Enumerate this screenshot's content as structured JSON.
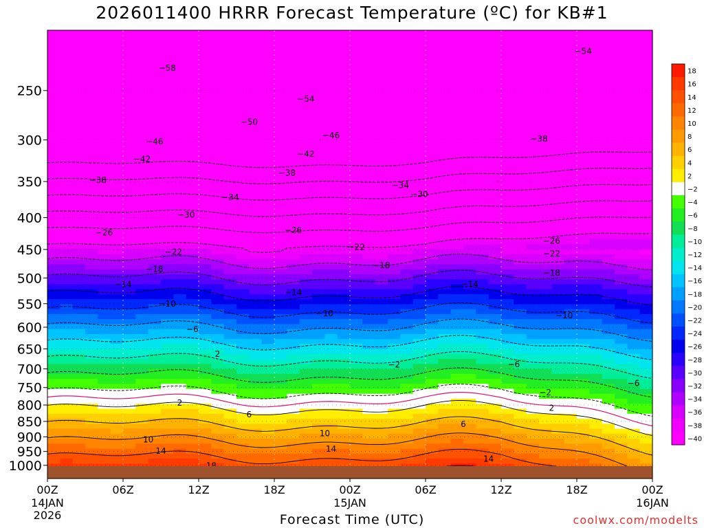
{
  "title": "2026011400 HRRR Forecast Temperature (ºC) for KB#1",
  "xlabel": "Forecast Time (UTC)",
  "credit": "coolwx.com/modelts",
  "chart_data": {
    "type": "contour",
    "title": "2026011400 HRRR Forecast Temperature (ºC) for KB#1",
    "xlabel": "Forecast Time (UTC)",
    "ylabel": "",
    "y_axis": "pressure (hPa), log scale, inverted",
    "ylim": [
      200,
      1050
    ],
    "x_ticks": [
      {
        "hour": 0,
        "label": "00Z",
        "sub": "14JAN",
        "sub2": "2026"
      },
      {
        "hour": 6,
        "label": "06Z",
        "sub": "",
        "sub2": ""
      },
      {
        "hour": 12,
        "label": "12Z",
        "sub": "",
        "sub2": ""
      },
      {
        "hour": 18,
        "label": "18Z",
        "sub": "",
        "sub2": ""
      },
      {
        "hour": 24,
        "label": "00Z",
        "sub": "15JAN",
        "sub2": ""
      },
      {
        "hour": 30,
        "label": "06Z",
        "sub": "",
        "sub2": ""
      },
      {
        "hour": 36,
        "label": "12Z",
        "sub": "",
        "sub2": ""
      },
      {
        "hour": 42,
        "label": "18Z",
        "sub": "",
        "sub2": ""
      },
      {
        "hour": 48,
        "label": "00Z",
        "sub": "16JAN",
        "sub2": ""
      }
    ],
    "y_ticks": [
      250,
      300,
      350,
      400,
      450,
      500,
      550,
      600,
      650,
      700,
      750,
      800,
      850,
      900,
      950,
      1000
    ],
    "colorbar_ticks": [
      18,
      16,
      14,
      12,
      10,
      8,
      6,
      4,
      2,
      -2,
      -4,
      -6,
      -8,
      -10,
      -12,
      -14,
      -16,
      -18,
      -20,
      -22,
      -24,
      -26,
      -28,
      -30,
      -32,
      -34,
      -36,
      -38,
      -40
    ],
    "colorbar_colors": [
      "#ff1a00",
      "#ff3a00",
      "#ff5200",
      "#ff6a00",
      "#ff8400",
      "#ff9a00",
      "#ffb200",
      "#ffd000",
      "#ffee00",
      "#ffffff",
      "#44ff00",
      "#22ee22",
      "#11dd55",
      "#00ee99",
      "#00eecc",
      "#00e5ee",
      "#00c4ff",
      "#00a0ff",
      "#0078ff",
      "#0050ff",
      "#0028ff",
      "#0000ee",
      "#2a00ff",
      "#5a00ff",
      "#8a00ff",
      "#b000ff",
      "#d800ff",
      "#f000ff",
      "#ff00ff"
    ],
    "contour_levels": [
      -58,
      -54,
      -50,
      -46,
      -42,
      -38,
      -34,
      -30,
      -26,
      -22,
      -18,
      -14,
      -10,
      -6,
      -2,
      2,
      6,
      10,
      14,
      18
    ],
    "contour_labels": [
      {
        "value": -58,
        "hour": 9.5,
        "p": 230
      },
      {
        "value": -54,
        "hour": 42.5,
        "p": 216
      },
      {
        "value": -54,
        "hour": 20.5,
        "p": 258
      },
      {
        "value": -50,
        "hour": 16,
        "p": 281
      },
      {
        "value": -46,
        "hour": 8.5,
        "p": 302
      },
      {
        "value": -46,
        "hour": 22.5,
        "p": 295
      },
      {
        "value": -42,
        "hour": 7.5,
        "p": 322
      },
      {
        "value": -42,
        "hour": 20.5,
        "p": 316
      },
      {
        "value": -38,
        "hour": 4,
        "p": 348
      },
      {
        "value": -38,
        "hour": 19,
        "p": 339
      },
      {
        "value": -38,
        "hour": 39,
        "p": 299
      },
      {
        "value": -34,
        "hour": 14.5,
        "p": 371
      },
      {
        "value": -34,
        "hour": 28,
        "p": 355
      },
      {
        "value": -30,
        "hour": 11,
        "p": 396
      },
      {
        "value": -30,
        "hour": 29.5,
        "p": 367
      },
      {
        "value": -26,
        "hour": 4.5,
        "p": 423
      },
      {
        "value": -26,
        "hour": 19.5,
        "p": 419
      },
      {
        "value": -26,
        "hour": 40,
        "p": 436
      },
      {
        "value": -22,
        "hour": 10,
        "p": 454
      },
      {
        "value": -22,
        "hour": 24.5,
        "p": 446
      },
      {
        "value": -22,
        "hour": 40,
        "p": 457
      },
      {
        "value": -18,
        "hour": 8.5,
        "p": 484
      },
      {
        "value": -18,
        "hour": 26.5,
        "p": 477
      },
      {
        "value": -18,
        "hour": 40,
        "p": 491
      },
      {
        "value": -14,
        "hour": 6,
        "p": 512
      },
      {
        "value": -14,
        "hour": 19.5,
        "p": 528
      },
      {
        "value": -14,
        "hour": 33.5,
        "p": 512
      },
      {
        "value": -10,
        "hour": 9.5,
        "p": 550
      },
      {
        "value": -10,
        "hour": 22,
        "p": 570
      },
      {
        "value": -10,
        "hour": 41,
        "p": 575
      },
      {
        "value": -6,
        "hour": 11.5,
        "p": 605
      },
      {
        "value": -6,
        "hour": 37,
        "p": 688
      },
      {
        "value": -6,
        "hour": 46.5,
        "p": 738
      },
      {
        "value": -2,
        "hour": 27.5,
        "p": 689
      },
      {
        "value": -2,
        "hour": 39.5,
        "p": 764
      },
      {
        "value": 2,
        "hour": 13.5,
        "p": 663
      },
      {
        "value": 2,
        "hour": 10.5,
        "p": 794
      },
      {
        "value": 2,
        "hour": 40,
        "p": 809
      },
      {
        "value": 6,
        "hour": 16,
        "p": 829
      },
      {
        "value": 6,
        "hour": 33,
        "p": 859
      },
      {
        "value": 10,
        "hour": 8,
        "p": 909
      },
      {
        "value": 10,
        "hour": 22,
        "p": 889
      },
      {
        "value": 14,
        "hour": 9,
        "p": 948
      },
      {
        "value": 14,
        "hour": 22.5,
        "p": 941
      },
      {
        "value": 14,
        "hour": 35,
        "p": 977
      },
      {
        "value": 18,
        "hour": 13,
        "p": 1002
      }
    ]
  }
}
